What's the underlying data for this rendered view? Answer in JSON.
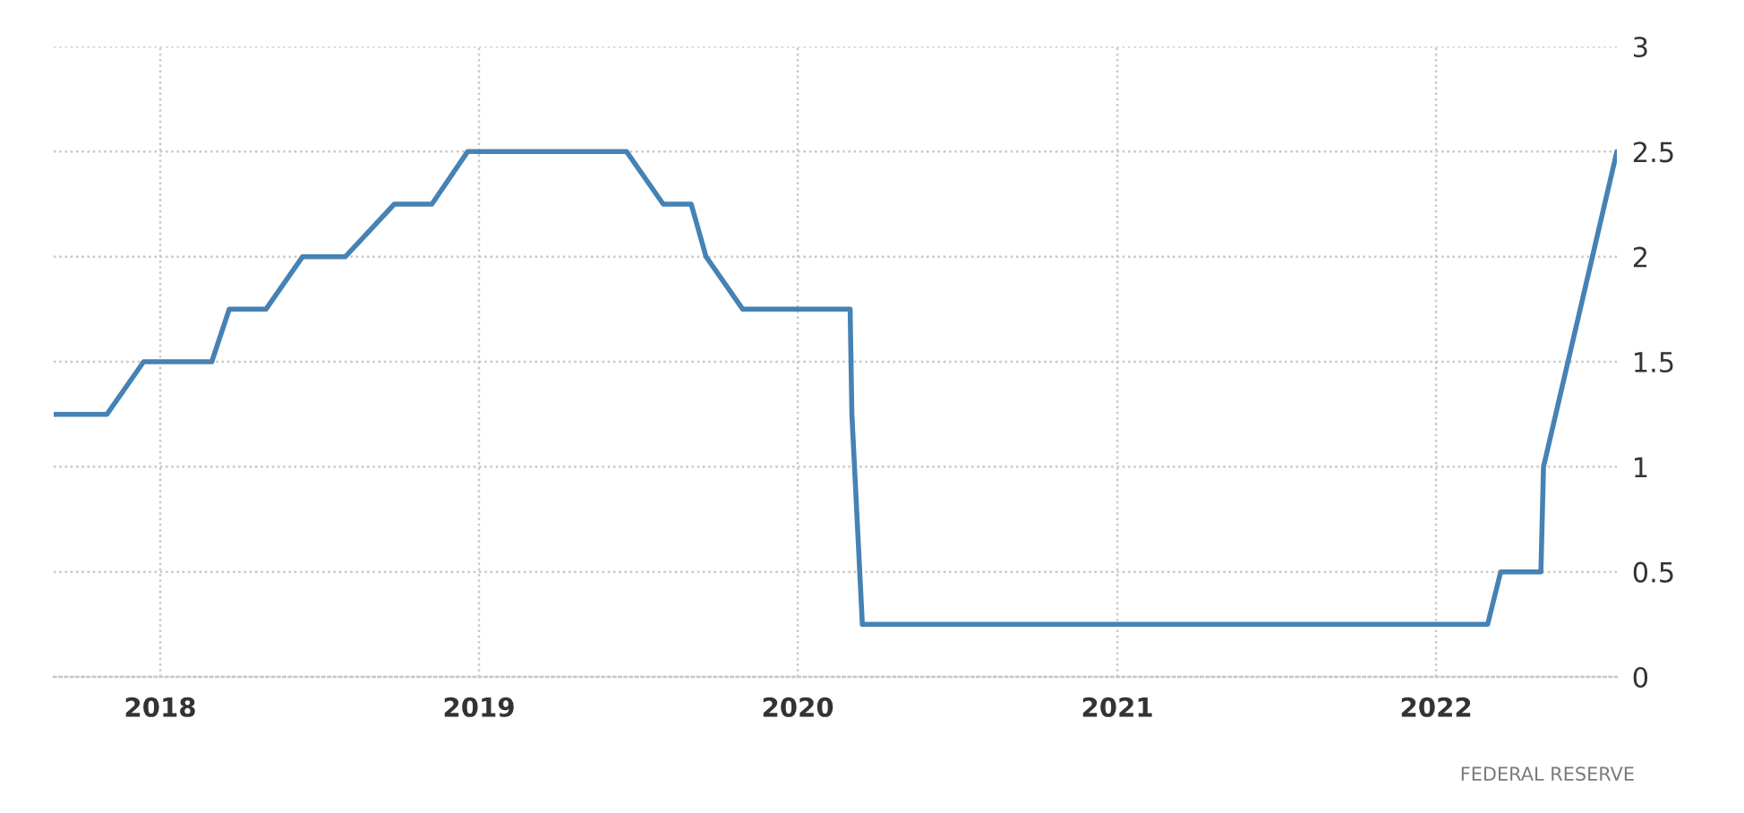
{
  "chart_data": {
    "type": "line",
    "x": [
      "2017-09-01",
      "2017-09-20",
      "2017-11-01",
      "2017-12-13",
      "2018-01-31",
      "2018-03-01",
      "2018-03-21",
      "2018-05-02",
      "2018-06-13",
      "2018-08-01",
      "2018-09-26",
      "2018-11-08",
      "2018-12-19",
      "2019-01-30",
      "2019-03-20",
      "2019-05-01",
      "2019-06-19",
      "2019-07-31",
      "2019-09-01",
      "2019-09-18",
      "2019-10-30",
      "2019-12-11",
      "2020-01-29",
      "2020-03-01",
      "2020-03-03",
      "2020-03-15",
      "2020-04-29",
      "2020-06-10",
      "2020-07-29",
      "2020-09-16",
      "2020-11-05",
      "2020-12-16",
      "2021-01-27",
      "2021-03-17",
      "2021-04-28",
      "2021-06-16",
      "2021-07-28",
      "2021-09-22",
      "2021-11-03",
      "2021-12-15",
      "2022-01-26",
      "2022-03-01",
      "2022-03-16",
      "2022-05-01",
      "2022-05-04",
      "2022-06-15",
      "2022-07-27"
    ],
    "values": [
      1.25,
      1.25,
      1.25,
      1.5,
      1.5,
      1.5,
      1.75,
      1.75,
      2,
      2,
      2.25,
      2.25,
      2.5,
      2.5,
      2.5,
      2.5,
      2.5,
      2.25,
      2.25,
      2,
      1.75,
      1.75,
      1.75,
      1.75,
      1.25,
      0.25,
      0.25,
      0.25,
      0.25,
      0.25,
      0.25,
      0.25,
      0.25,
      0.25,
      0.25,
      0.25,
      0.25,
      0.25,
      0.25,
      0.25,
      0.25,
      0.25,
      0.5,
      0.5,
      1,
      1.75,
      2.5
    ],
    "color": "#4682b4",
    "line_style": "solid",
    "xlim": [
      "2017-09-01",
      "2022-07-27"
    ],
    "xticks": [
      "2018",
      "2019",
      "2020",
      "2021",
      "2022"
    ],
    "ylim": [
      0,
      3
    ],
    "yticks": [
      0,
      0.5,
      1,
      1.5,
      2,
      2.5,
      3
    ],
    "grid": true,
    "annotations": [
      "FEDERAL RESERVE"
    ]
  }
}
